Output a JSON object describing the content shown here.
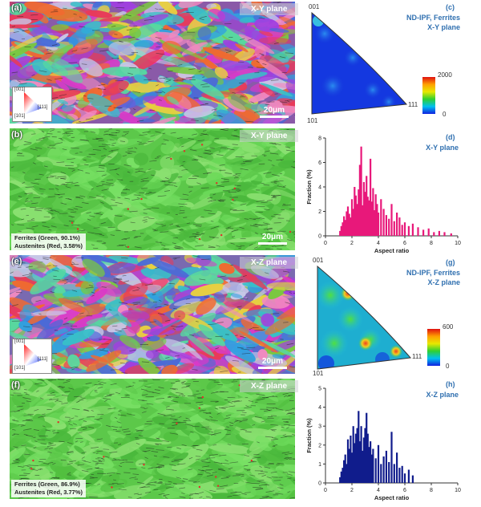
{
  "panels": {
    "a": {
      "letter": "(a)",
      "plane": "X-Y plane",
      "scale": "20μm"
    },
    "b": {
      "letter": "(b)",
      "plane": "X-Y plane",
      "scale": "20μm",
      "phase1": "Ferrites (Green, 90.1%)",
      "phase2": "Austenites (Red, 3.58%)"
    },
    "c": {
      "letter": "(c)",
      "title1": "ND-IPF, Ferrites",
      "title2": "X-Y plane",
      "corner_top": "001",
      "corner_right": "111",
      "corner_bottom": "101",
      "cb_max": "2000",
      "cb_min": "0"
    },
    "d": {
      "letter": "(d)",
      "title": "X-Y plane"
    },
    "e": {
      "letter": "(e)",
      "plane": "X-Z plane",
      "scale": "20μm"
    },
    "f": {
      "letter": "(f)",
      "plane": "X-Z plane",
      "phase1": "Ferrites (Green, 86.9%)",
      "phase2": "Austenites (Red, 3.77%)"
    },
    "g": {
      "letter": "(g)",
      "title1": "ND-IPF, Ferrites",
      "title2": "X-Z plane",
      "corner_top": "001",
      "corner_right": "111",
      "corner_bottom": "101",
      "cb_max": "600",
      "cb_min": "0"
    },
    "h": {
      "letter": "(h)",
      "title": "X-Z plane"
    }
  },
  "ipf_legend": {
    "top": "[001]",
    "right": "[111]",
    "bottom": "[101]"
  },
  "colors": {
    "ferrite": "#5cc84a",
    "austenite": "#e0302a",
    "chart_d": "#e8187a",
    "chart_h": "#101c8c",
    "label_blue": "#3070b0"
  },
  "chart_data": [
    {
      "type": "bar",
      "panel": "d",
      "title": "X-Y plane",
      "xlabel": "Aspect ratio",
      "ylabel": "Fraction (%)",
      "xlim": [
        0,
        10
      ],
      "ylim": [
        0,
        8
      ],
      "xticks": [
        "0",
        "2",
        "4",
        "6",
        "8",
        "10"
      ],
      "yticks": [
        "0",
        "2",
        "4",
        "6",
        "8"
      ],
      "x": [
        1.1,
        1.2,
        1.3,
        1.4,
        1.5,
        1.6,
        1.7,
        1.8,
        1.9,
        2.0,
        2.1,
        2.2,
        2.3,
        2.4,
        2.5,
        2.6,
        2.7,
        2.8,
        2.9,
        3.0,
        3.1,
        3.2,
        3.3,
        3.4,
        3.5,
        3.6,
        3.7,
        3.8,
        3.9,
        4.0,
        4.2,
        4.4,
        4.6,
        4.8,
        5.0,
        5.2,
        5.4,
        5.6,
        5.8,
        6.0,
        6.3,
        6.6,
        7.0,
        7.4,
        7.8,
        8.2,
        8.6,
        9.0,
        9.5
      ],
      "values": [
        0.4,
        0.8,
        1.1,
        1.6,
        1.3,
        2.0,
        2.4,
        1.8,
        1.5,
        3.0,
        2.2,
        4.0,
        3.3,
        2.6,
        3.8,
        5.8,
        7.3,
        2.5,
        4.4,
        3.6,
        4.9,
        3.2,
        2.9,
        6.3,
        2.8,
        3.9,
        2.1,
        3.4,
        2.6,
        1.9,
        3.0,
        2.2,
        1.7,
        1.4,
        2.6,
        1.2,
        1.9,
        1.5,
        0.9,
        1.1,
        0.8,
        1.0,
        0.7,
        0.5,
        0.6,
        0.3,
        0.4,
        0.3,
        0.2
      ]
    },
    {
      "type": "bar",
      "panel": "h",
      "title": "X-Z plane",
      "xlabel": "Aspect ratio",
      "ylabel": "Fraction (%)",
      "xlim": [
        0,
        10
      ],
      "ylim": [
        0,
        5
      ],
      "xticks": [
        "0",
        "2",
        "4",
        "6",
        "8",
        "10"
      ],
      "yticks": [
        "0",
        "1",
        "2",
        "3",
        "4",
        "5"
      ],
      "x": [
        1.1,
        1.2,
        1.3,
        1.4,
        1.5,
        1.6,
        1.7,
        1.8,
        1.9,
        2.0,
        2.1,
        2.2,
        2.3,
        2.4,
        2.5,
        2.6,
        2.7,
        2.8,
        2.9,
        3.0,
        3.1,
        3.2,
        3.3,
        3.4,
        3.5,
        3.6,
        3.8,
        4.0,
        4.2,
        4.4,
        4.6,
        4.8,
        5.0,
        5.2,
        5.4,
        5.6,
        5.8,
        6.0,
        6.3,
        6.6
      ],
      "values": [
        0.3,
        0.6,
        0.8,
        1.2,
        1.5,
        1.0,
        2.3,
        1.8,
        2.5,
        1.6,
        3.0,
        2.1,
        2.6,
        2.9,
        3.8,
        2.2,
        3.0,
        1.7,
        2.4,
        2.9,
        3.7,
        2.6,
        1.9,
        2.2,
        1.5,
        1.8,
        1.3,
        2.0,
        1.0,
        1.4,
        1.7,
        1.1,
        2.7,
        1.0,
        1.6,
        0.8,
        0.9,
        0.5,
        0.7,
        0.4
      ]
    }
  ]
}
